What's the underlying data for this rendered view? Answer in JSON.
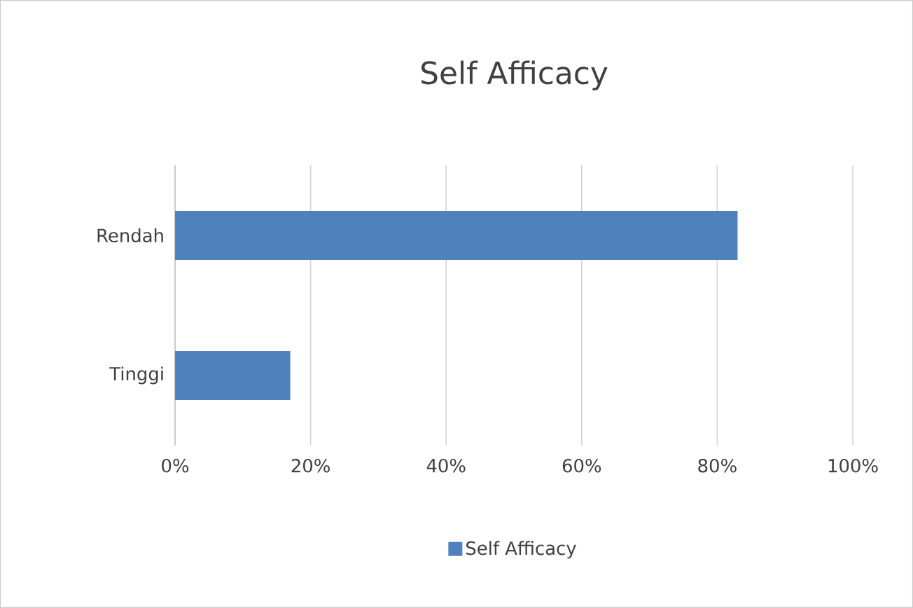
{
  "chart_data": {
    "type": "bar",
    "orientation": "horizontal",
    "title": "Self Afficacy",
    "categories": [
      "Rendah",
      "Tinggi"
    ],
    "series": [
      {
        "name": "Self Afficacy",
        "color": "#4f81bd",
        "values": [
          83,
          17
        ]
      }
    ],
    "xlim": [
      0,
      100
    ],
    "xticks": [
      {
        "value": 0,
        "label": "0%"
      },
      {
        "value": 20,
        "label": "20%"
      },
      {
        "value": 40,
        "label": "40%"
      },
      {
        "value": 60,
        "label": "60%"
      },
      {
        "value": 80,
        "label": "80%"
      },
      {
        "value": 100,
        "label": "100%"
      }
    ],
    "grid": "x",
    "legend": "bottom"
  }
}
